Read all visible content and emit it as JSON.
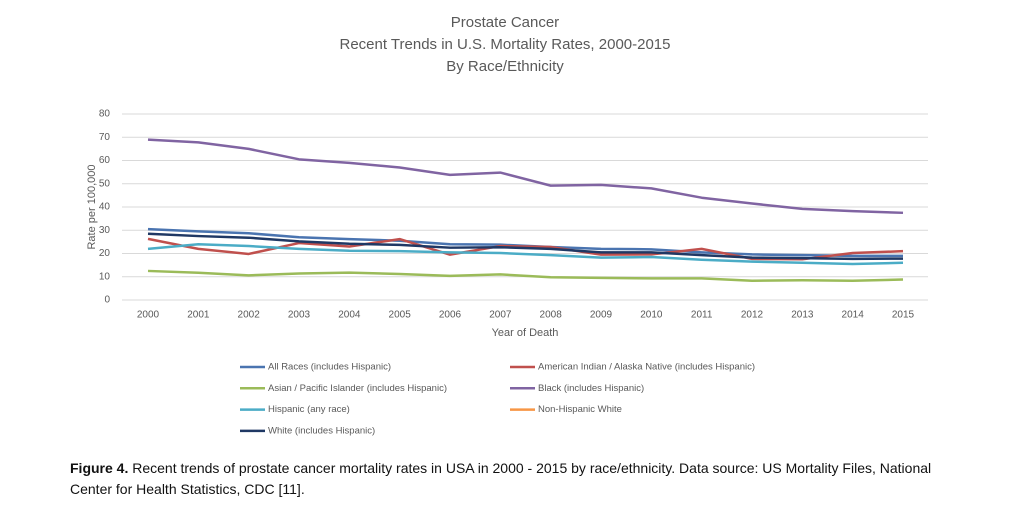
{
  "chart_data": {
    "type": "line",
    "title": "Prostate Cancer",
    "subtitle": "Recent Trends in U.S. Mortality Rates, 2000-2015",
    "subtitle2": "By Race/Ethnicity",
    "x_label": "Year of Death",
    "y_label": "Rate per 100,000",
    "categories": [
      "2000",
      "2001",
      "2002",
      "2003",
      "2004",
      "2005",
      "2006",
      "2007",
      "2008",
      "2009",
      "2010",
      "2011",
      "2012",
      "2013",
      "2014",
      "2015"
    ],
    "ylim": [
      0,
      80
    ],
    "yticks": [
      0,
      10,
      20,
      30,
      40,
      50,
      60,
      70,
      80
    ],
    "grid": true,
    "legend": "bottom",
    "series": [
      {
        "name": "All Races (includes Hispanic)",
        "color": "#4a74b0",
        "values": [
          30.5,
          29.5,
          28.7,
          27.0,
          26.2,
          25.5,
          24.0,
          23.8,
          22.8,
          22.0,
          21.8,
          20.5,
          19.6,
          19.3,
          19.0,
          19.0
        ]
      },
      {
        "name": "American Indian / Alaska Native (includes Hispanic)",
        "color": "#c0504d",
        "values": [
          26.3,
          22.0,
          19.8,
          24.5,
          23.0,
          26.2,
          19.5,
          23.2,
          22.8,
          19.5,
          19.6,
          22.0,
          17.7,
          17.5,
          20.2,
          21.0
        ]
      },
      {
        "name": "Asian / Pacific Islander (includes Hispanic)",
        "color": "#9bbb59",
        "values": [
          12.5,
          11.7,
          10.6,
          11.4,
          11.8,
          11.2,
          10.4,
          11.0,
          9.8,
          9.5,
          9.3,
          9.3,
          8.3,
          8.5,
          8.3,
          8.8
        ]
      },
      {
        "name": "Black (includes Hispanic)",
        "color": "#8064a2",
        "values": [
          69.0,
          67.8,
          65.0,
          60.5,
          59.0,
          57.0,
          53.8,
          54.8,
          49.2,
          49.5,
          48.0,
          44.0,
          41.5,
          39.2,
          38.2,
          37.5
        ]
      },
      {
        "name": "Hispanic (any race)",
        "color": "#4bacc6",
        "values": [
          22.0,
          24.0,
          23.2,
          22.0,
          21.2,
          21.0,
          20.5,
          20.2,
          19.3,
          18.2,
          18.5,
          17.3,
          16.5,
          16.0,
          15.5,
          16.0
        ]
      },
      {
        "name": "Non-Hispanic White",
        "color": "#f79646",
        "values": [
          null,
          null,
          null,
          null,
          null,
          null,
          null,
          null,
          null,
          null,
          null,
          null,
          null,
          null,
          null,
          null
        ]
      },
      {
        "name": "White (includes Hispanic)",
        "color": "#1f3864",
        "values": [
          28.5,
          27.5,
          26.8,
          25.2,
          24.2,
          23.7,
          22.5,
          22.7,
          22.0,
          20.5,
          20.5,
          19.3,
          18.2,
          18.0,
          17.7,
          17.8
        ]
      }
    ]
  },
  "caption": {
    "label": "Figure 4.",
    "text": "Recent trends of prostate cancer mortality rates in USA in 2000 - 2015 by race/ethnicity. Data source: US Mortality Files, National Center for Health Statistics, CDC [11]."
  }
}
